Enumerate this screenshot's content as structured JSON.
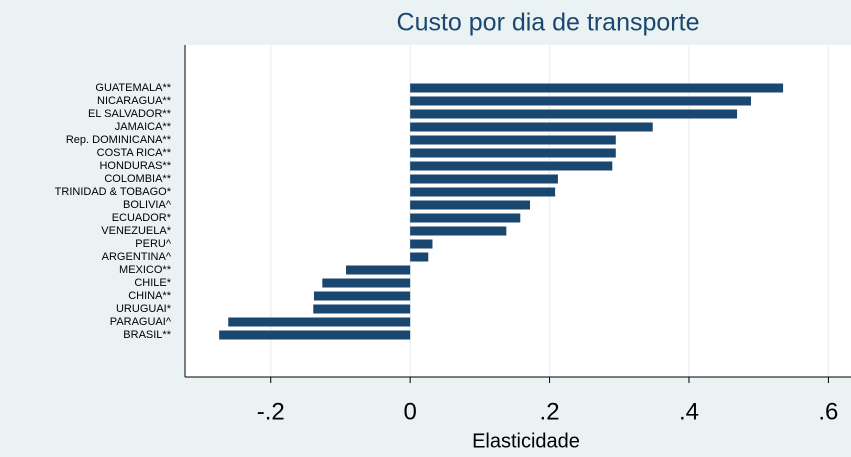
{
  "chart_data": {
    "type": "bar",
    "orientation": "horizontal",
    "title": "Custo por dia de transporte",
    "x_label": "Elasticidade",
    "categories": [
      "GUATEMALA**",
      "NICARAGUA**",
      "EL SALVADOR**",
      "JAMAICA**",
      "Rep. DOMINICANA**",
      "COSTA RICA**",
      "HONDURAS**",
      "COLOMBIA**",
      "TRINIDAD & TOBAGO*",
      "BOLIVIA^",
      "ECUADOR*",
      "VENEZUELA*",
      "PERU^",
      "ARGENTINA^",
      "MEXICO**",
      "CHILE*",
      "CHINA**",
      "URUGUAI*",
      "PARAGUAI^",
      "BRASIL**"
    ],
    "values": [
      0.535,
      0.489,
      0.469,
      0.348,
      0.295,
      0.295,
      0.29,
      0.212,
      0.208,
      0.172,
      0.158,
      0.138,
      0.032,
      0.026,
      -0.092,
      -0.126,
      -0.138,
      -0.139,
      -0.261,
      -0.274
    ],
    "color": "#1a476f",
    "xlim": [
      -0.323,
      0.631
    ],
    "xticks": [
      {
        "value": -0.2,
        "label": "-.2"
      },
      0,
      {
        "value": 0.2,
        "label": ".2"
      },
      {
        "value": 0.4,
        "label": ".4"
      },
      {
        "value": 0.6,
        "label": ".6"
      }
    ],
    "grid": true
  }
}
